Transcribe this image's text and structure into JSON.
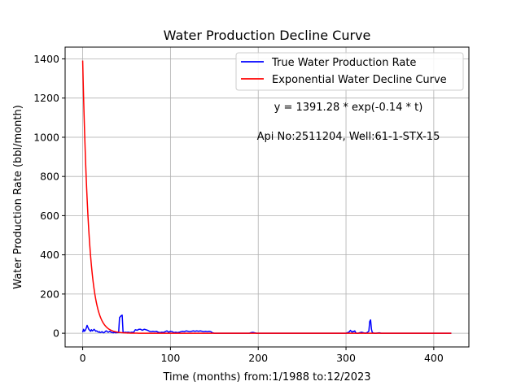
{
  "chart_data": {
    "type": "line",
    "title": "Water Production Decline Curve",
    "xlabel": "Time (months) from:1/1988 to:12/2023",
    "ylabel": "Water Production Rate (bbl/month)",
    "xlim": [
      -20,
      440
    ],
    "ylim": [
      -70,
      1460
    ],
    "xticks": [
      0,
      100,
      200,
      300,
      400
    ],
    "yticks": [
      0,
      200,
      400,
      600,
      800,
      1000,
      1200,
      1400
    ],
    "grid": true,
    "legend_position": "top-right",
    "annotations": [
      "y = 1391.28 * exp(-0.14 * t)",
      "Api No:2511204, Well:61-1-STX-15"
    ],
    "series": [
      {
        "name": "True Water Production Rate",
        "color": "#0000ff",
        "points": [
          [
            0,
            5
          ],
          [
            1,
            20
          ],
          [
            2,
            10
          ],
          [
            3,
            15
          ],
          [
            4,
            25
          ],
          [
            5,
            40
          ],
          [
            6,
            30
          ],
          [
            7,
            20
          ],
          [
            8,
            15
          ],
          [
            9,
            10
          ],
          [
            10,
            18
          ],
          [
            11,
            12
          ],
          [
            12,
            15
          ],
          [
            13,
            20
          ],
          [
            14,
            15
          ],
          [
            15,
            10
          ],
          [
            16,
            12
          ],
          [
            17,
            8
          ],
          [
            18,
            5
          ],
          [
            19,
            8
          ],
          [
            20,
            3
          ],
          [
            21,
            5
          ],
          [
            22,
            8
          ],
          [
            23,
            4
          ],
          [
            24,
            2
          ],
          [
            25,
            5
          ],
          [
            26,
            10
          ],
          [
            27,
            12
          ],
          [
            28,
            8
          ],
          [
            29,
            5
          ],
          [
            30,
            7
          ],
          [
            31,
            10
          ],
          [
            32,
            6
          ],
          [
            33,
            4
          ],
          [
            34,
            3
          ],
          [
            35,
            2
          ],
          [
            36,
            5
          ],
          [
            37,
            3
          ],
          [
            38,
            2
          ],
          [
            39,
            4
          ],
          [
            40,
            3
          ],
          [
            41,
            5
          ],
          [
            42,
            80
          ],
          [
            43,
            85
          ],
          [
            44,
            90
          ],
          [
            45,
            92
          ],
          [
            46,
            5
          ],
          [
            47,
            3
          ],
          [
            48,
            5
          ],
          [
            50,
            4
          ],
          [
            52,
            5
          ],
          [
            54,
            3
          ],
          [
            56,
            5
          ],
          [
            58,
            4
          ],
          [
            60,
            18
          ],
          [
            62,
            15
          ],
          [
            64,
            20
          ],
          [
            66,
            20
          ],
          [
            68,
            15
          ],
          [
            70,
            20
          ],
          [
            72,
            18
          ],
          [
            74,
            15
          ],
          [
            76,
            10
          ],
          [
            78,
            8
          ],
          [
            80,
            10
          ],
          [
            82,
            8
          ],
          [
            84,
            10
          ],
          [
            86,
            5
          ],
          [
            88,
            3
          ],
          [
            90,
            5
          ],
          [
            92,
            4
          ],
          [
            94,
            8
          ],
          [
            96,
            12
          ],
          [
            98,
            5
          ],
          [
            100,
            10
          ],
          [
            102,
            8
          ],
          [
            104,
            3
          ],
          [
            106,
            5
          ],
          [
            108,
            3
          ],
          [
            110,
            5
          ],
          [
            112,
            8
          ],
          [
            114,
            10
          ],
          [
            116,
            8
          ],
          [
            118,
            12
          ],
          [
            120,
            10
          ],
          [
            122,
            8
          ],
          [
            124,
            10
          ],
          [
            126,
            12
          ],
          [
            128,
            10
          ],
          [
            130,
            12
          ],
          [
            132,
            10
          ],
          [
            134,
            12
          ],
          [
            136,
            10
          ],
          [
            138,
            8
          ],
          [
            140,
            10
          ],
          [
            142,
            8
          ],
          [
            144,
            10
          ],
          [
            146,
            8
          ],
          [
            148,
            2
          ],
          [
            150,
            0
          ],
          [
            160,
            0
          ],
          [
            170,
            0
          ],
          [
            180,
            0
          ],
          [
            190,
            0
          ],
          [
            192,
            3
          ],
          [
            194,
            4
          ],
          [
            196,
            2
          ],
          [
            198,
            0
          ],
          [
            220,
            0
          ],
          [
            240,
            0
          ],
          [
            260,
            0
          ],
          [
            280,
            0
          ],
          [
            300,
            0
          ],
          [
            302,
            3
          ],
          [
            304,
            8
          ],
          [
            305,
            15
          ],
          [
            306,
            10
          ],
          [
            307,
            5
          ],
          [
            308,
            10
          ],
          [
            309,
            8
          ],
          [
            310,
            12
          ],
          [
            311,
            3
          ],
          [
            312,
            0
          ],
          [
            314,
            0
          ],
          [
            316,
            3
          ],
          [
            318,
            5
          ],
          [
            320,
            2
          ],
          [
            322,
            0
          ],
          [
            324,
            3
          ],
          [
            326,
            10
          ],
          [
            327,
            60
          ],
          [
            328,
            68
          ],
          [
            329,
            20
          ],
          [
            330,
            3
          ],
          [
            332,
            0
          ],
          [
            334,
            0
          ],
          [
            338,
            2
          ],
          [
            340,
            0
          ],
          [
            360,
            0
          ],
          [
            380,
            0
          ],
          [
            400,
            0
          ],
          [
            420,
            0
          ]
        ]
      },
      {
        "name": "Exponential Water Decline Curve",
        "color": "#ff0000",
        "model": {
          "a": 1391.28,
          "b": 0.14,
          "t_start": 0,
          "t_end": 420
        }
      }
    ]
  }
}
